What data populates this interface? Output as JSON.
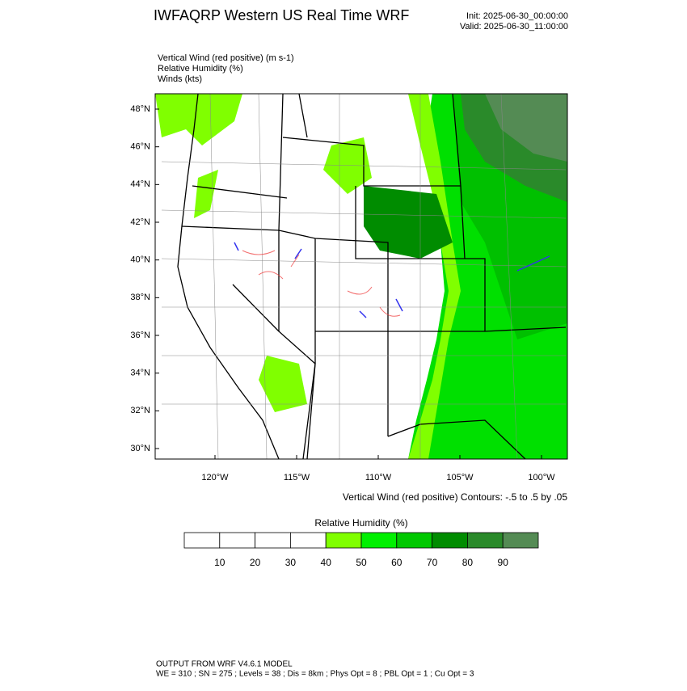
{
  "header": {
    "title": "IWFAQRP Western US Real Time WRF",
    "init": "Init: 2025-06-30_00:00:00",
    "valid": "Valid: 2025-06-30_11:00:00",
    "fields": [
      "Vertical Wind (red positive)   (m s-1)",
      "Relative Humidity   (%)",
      "Winds   (kts)"
    ]
  },
  "map": {
    "lat_labels": [
      "48°N",
      "46°N",
      "44°N",
      "42°N",
      "40°N",
      "38°N",
      "36°N",
      "34°N",
      "32°N",
      "30°N"
    ],
    "lon_labels": [
      "120°W",
      "115°W",
      "110°W",
      "105°W",
      "100°W"
    ],
    "contour_note": "Vertical Wind (red positive) Contours: -.5 to .5 by .05"
  },
  "colorbar": {
    "title": "Relative Humidity  (%)",
    "labels": [
      10,
      20,
      30,
      40,
      50,
      60,
      70,
      80,
      90
    ],
    "colors": [
      "#ffffff",
      "#ffffff",
      "#ffffff",
      "#ffffff",
      "#80ff00",
      "#00f000",
      "#00c800",
      "#008c00",
      "#2a8a2a",
      "#548b54"
    ]
  },
  "footer": {
    "line1": "OUTPUT FROM WRF V4.6.1 MODEL",
    "line2": "WE = 310 ; SN = 275 ; Levels = 38 ; Dis = 8km ; Phys Opt = 8 ; PBL Opt = 1 ; Cu Opt = 3"
  }
}
